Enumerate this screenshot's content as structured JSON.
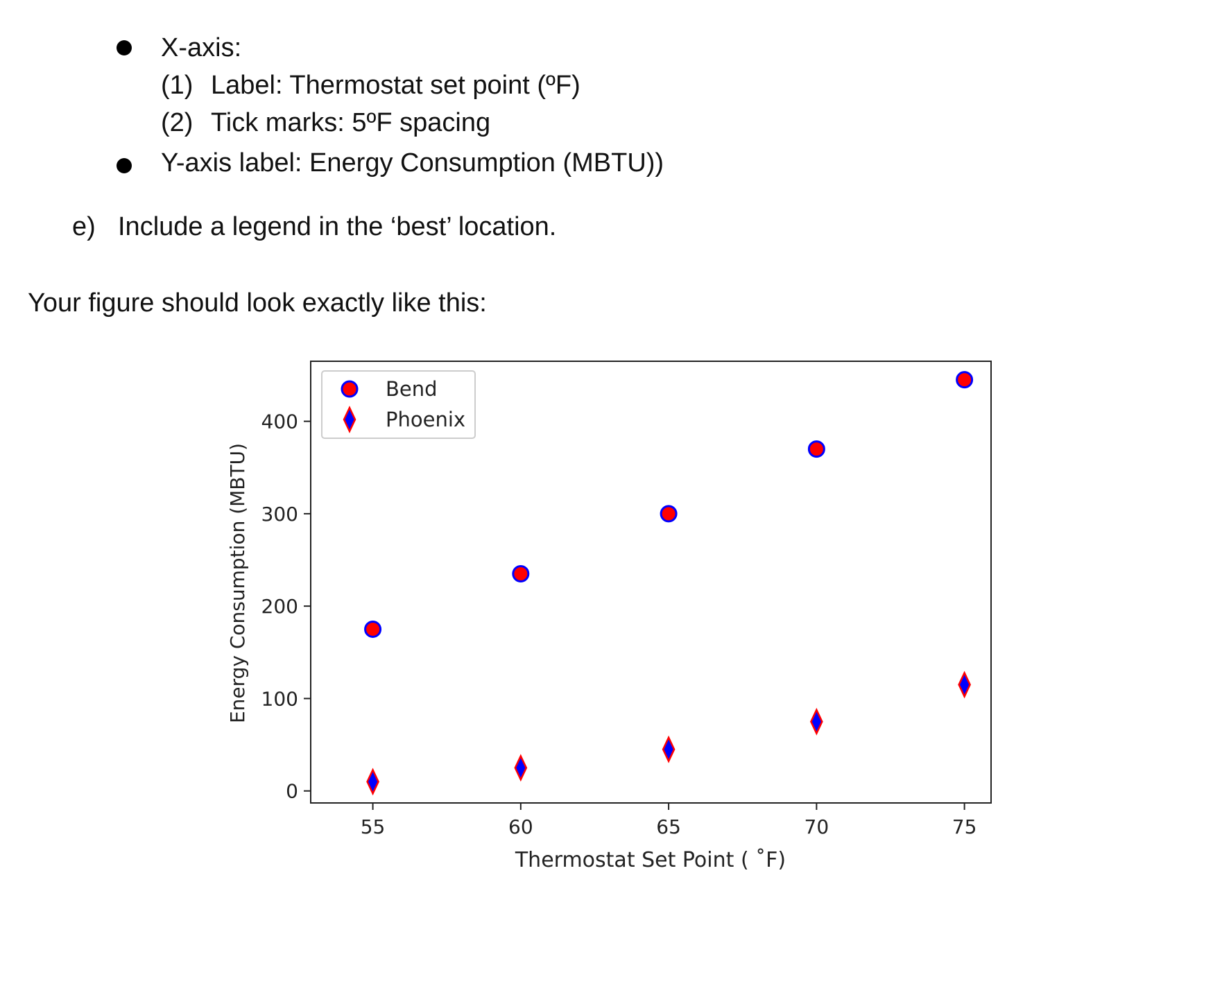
{
  "document": {
    "bullets": [
      {
        "label": "X-axis:",
        "subitems": [
          {
            "num": "(1)",
            "text": "Label: Thermostat set point (ºF)"
          },
          {
            "num": "(2)",
            "text": "Tick marks: 5ºF spacing"
          }
        ]
      },
      {
        "label": "Y-axis label: Energy Consumption (MBTU))"
      }
    ],
    "item_e": {
      "letter": "e)",
      "text": "Include a legend in the ‘best’ location."
    },
    "intro": "Your figure should look exactly like this:"
  },
  "chart_data": {
    "type": "scatter",
    "title": "",
    "xlabel": "Thermostat Set Point ( ˚F)",
    "ylabel": "Energy Consumption (MBTU)",
    "xlim": [
      52.9,
      75.9
    ],
    "ylim": [
      -13,
      465
    ],
    "xticks": [
      55,
      60,
      65,
      70,
      75
    ],
    "yticks": [
      0,
      100,
      200,
      300,
      400
    ],
    "x": [
      55,
      60,
      65,
      70,
      75
    ],
    "grid": false,
    "legend_placement": "upper-left",
    "series": [
      {
        "name": "Bend",
        "marker": "circle",
        "fill": "#ff0000",
        "edge": "#0000ff",
        "values": [
          175,
          235,
          300,
          370,
          445
        ]
      },
      {
        "name": "Phoenix",
        "marker": "diamond",
        "fill": "#0000ff",
        "edge": "#ff0000",
        "values": [
          10,
          25,
          45,
          75,
          115
        ]
      }
    ]
  }
}
